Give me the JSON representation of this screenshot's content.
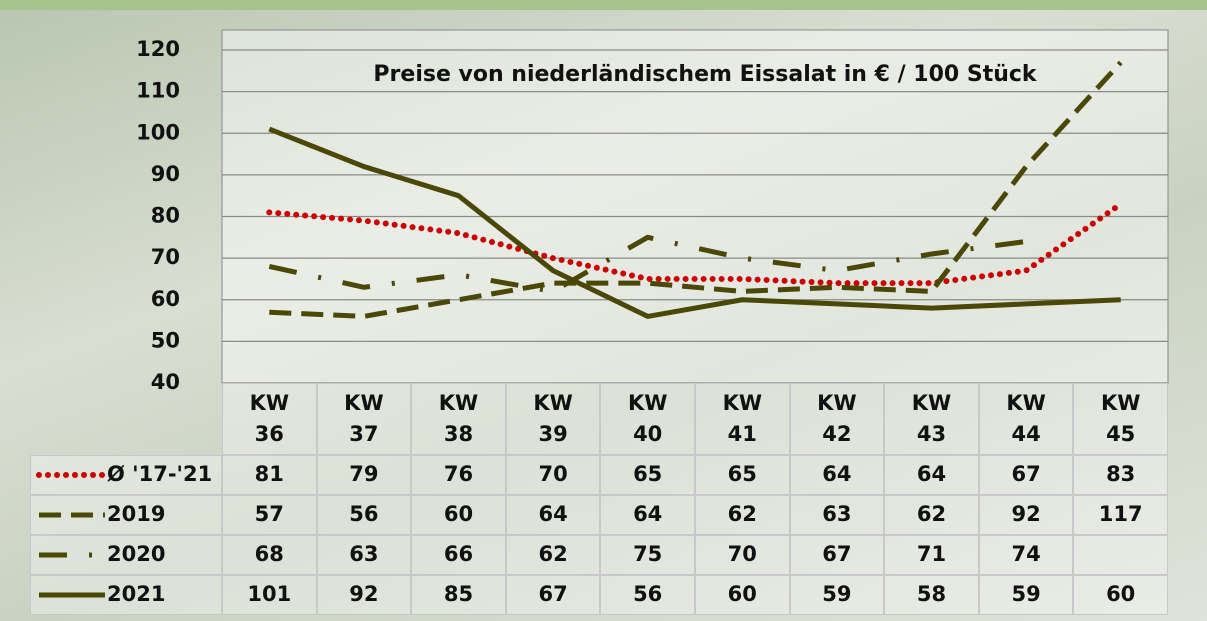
{
  "chart_data": {
    "type": "line",
    "title": "Preise von niederländischem Eissalat in € / 100 Stück",
    "categories": [
      "KW 36",
      "KW 37",
      "KW 38",
      "KW 39",
      "KW 40",
      "KW 41",
      "KW 42",
      "KW 43",
      "KW 44",
      "KW 45"
    ],
    "ylim": [
      40,
      120
    ],
    "yticks": [
      40,
      50,
      60,
      70,
      80,
      90,
      100,
      110,
      120
    ],
    "grid": true,
    "series": [
      {
        "name": "Ø '17-'21",
        "color": "#cc0000",
        "line_style": "dotted",
        "values": [
          81,
          79,
          76,
          70,
          65,
          65,
          64,
          64,
          67,
          83
        ]
      },
      {
        "name": "2019",
        "color": "#4b4706",
        "line_style": "dashed",
        "values": [
          57,
          56,
          60,
          64,
          64,
          62,
          63,
          62,
          92,
          117
        ]
      },
      {
        "name": "2020",
        "color": "#4b4706",
        "line_style": "dashdot",
        "values": [
          68,
          63,
          66,
          62,
          75,
          70,
          67,
          71,
          74,
          null
        ]
      },
      {
        "name": "2021",
        "color": "#4b4706",
        "line_style": "solid",
        "values": [
          101,
          92,
          85,
          67,
          56,
          60,
          59,
          58,
          59,
          60
        ]
      }
    ]
  }
}
